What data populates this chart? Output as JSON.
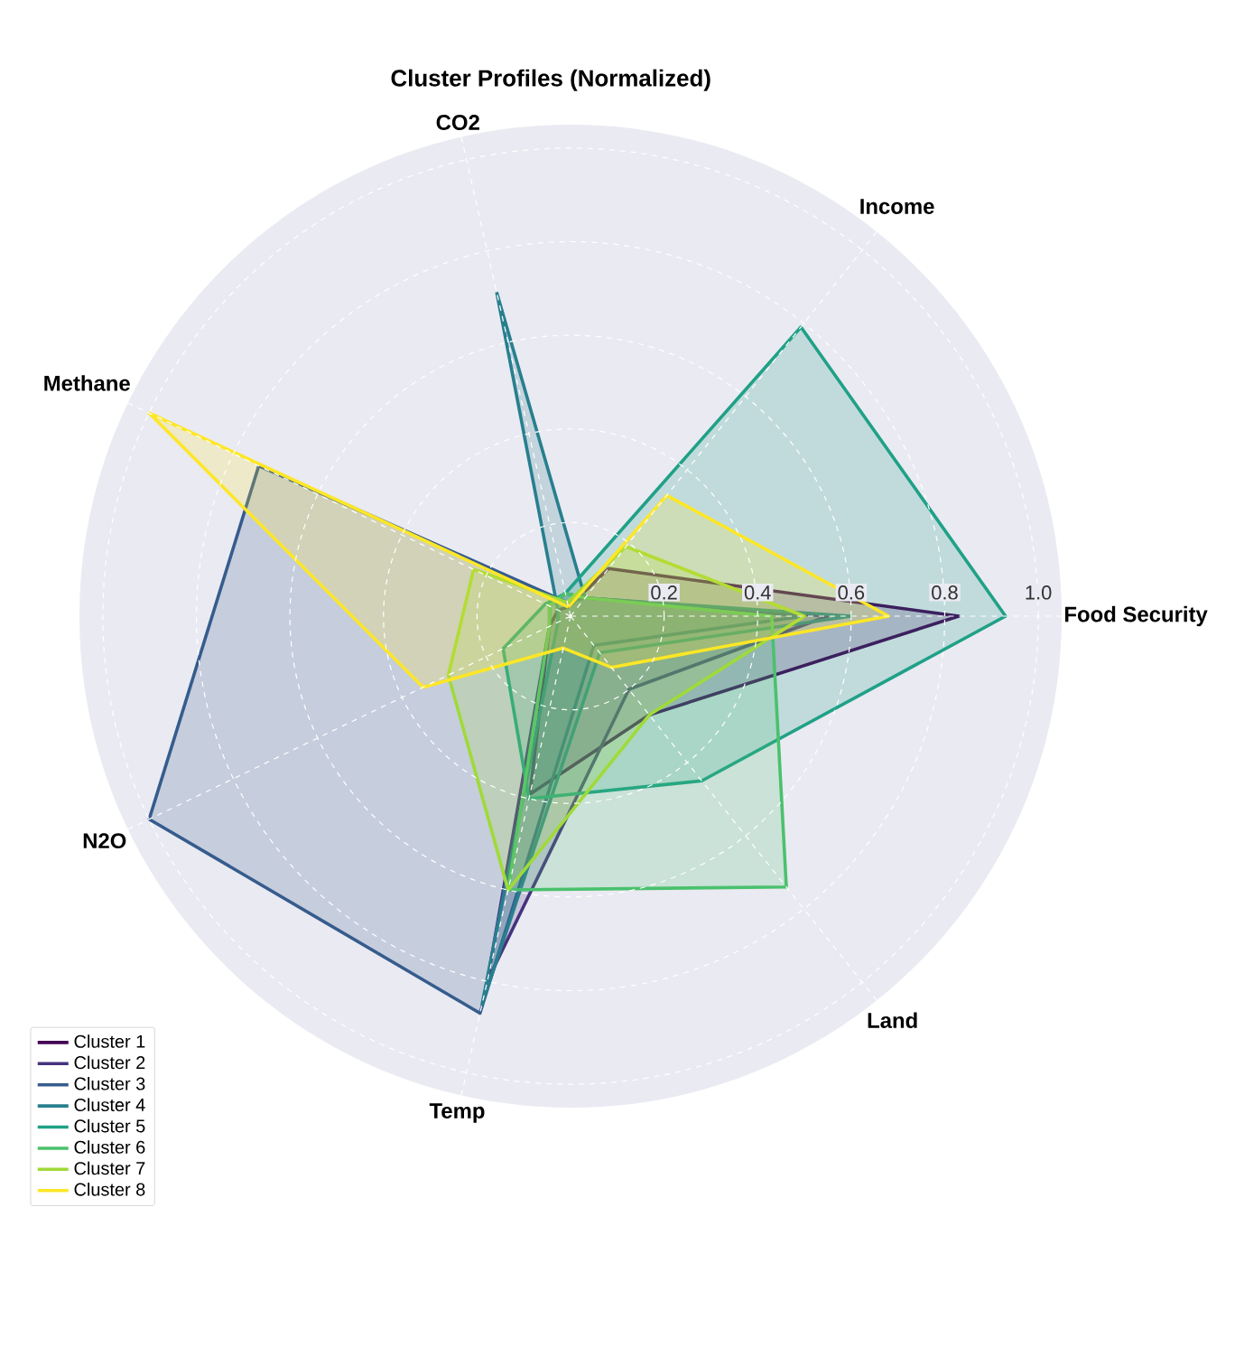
{
  "chart_data": {
    "type": "radar",
    "title": "Cluster Profiles (Normalized)",
    "categories": [
      "CO2",
      "Income",
      "Food Security",
      "Land",
      "Temp",
      "N2O",
      "Methane"
    ],
    "series": [
      {
        "name": "Cluster 1",
        "color": "#440154",
        "values": [
          0.02,
          0.13,
          0.83,
          0.27,
          0.39,
          0.05,
          0.03
        ]
      },
      {
        "name": "Cluster 2",
        "color": "#46327e",
        "values": [
          0.05,
          0.05,
          0.55,
          0.2,
          0.8,
          0.05,
          0.05
        ]
      },
      {
        "name": "Cluster 3",
        "color": "#365c8d",
        "values": [
          0.03,
          0.05,
          0.5,
          0.08,
          0.87,
          1.0,
          0.74
        ]
      },
      {
        "name": "Cluster 4",
        "color": "#277f8e",
        "values": [
          0.71,
          0.05,
          0.6,
          0.1,
          0.85,
          0.03,
          0.03
        ]
      },
      {
        "name": "Cluster 5",
        "color": "#1fa187",
        "values": [
          0.05,
          0.79,
          0.93,
          0.45,
          0.4,
          0.16,
          0.06
        ]
      },
      {
        "name": "Cluster 6",
        "color": "#4ac16d",
        "values": [
          0.05,
          0.05,
          0.43,
          0.74,
          0.6,
          0.05,
          0.05
        ]
      },
      {
        "name": "Cluster 7",
        "color": "#a0da39",
        "values": [
          0.03,
          0.19,
          0.5,
          0.27,
          0.6,
          0.29,
          0.23
        ]
      },
      {
        "name": "Cluster 8",
        "color": "#fde725",
        "values": [
          0.02,
          0.33,
          0.68,
          0.14,
          0.07,
          0.35,
          1.0
        ]
      }
    ],
    "ylim": [
      0,
      1.05
    ],
    "yticks": [
      0.2,
      0.4,
      0.6,
      0.8,
      {
        "value": 1.0,
        "label": "1.0"
      }
    ],
    "grid": true,
    "legend": "bottom left"
  }
}
